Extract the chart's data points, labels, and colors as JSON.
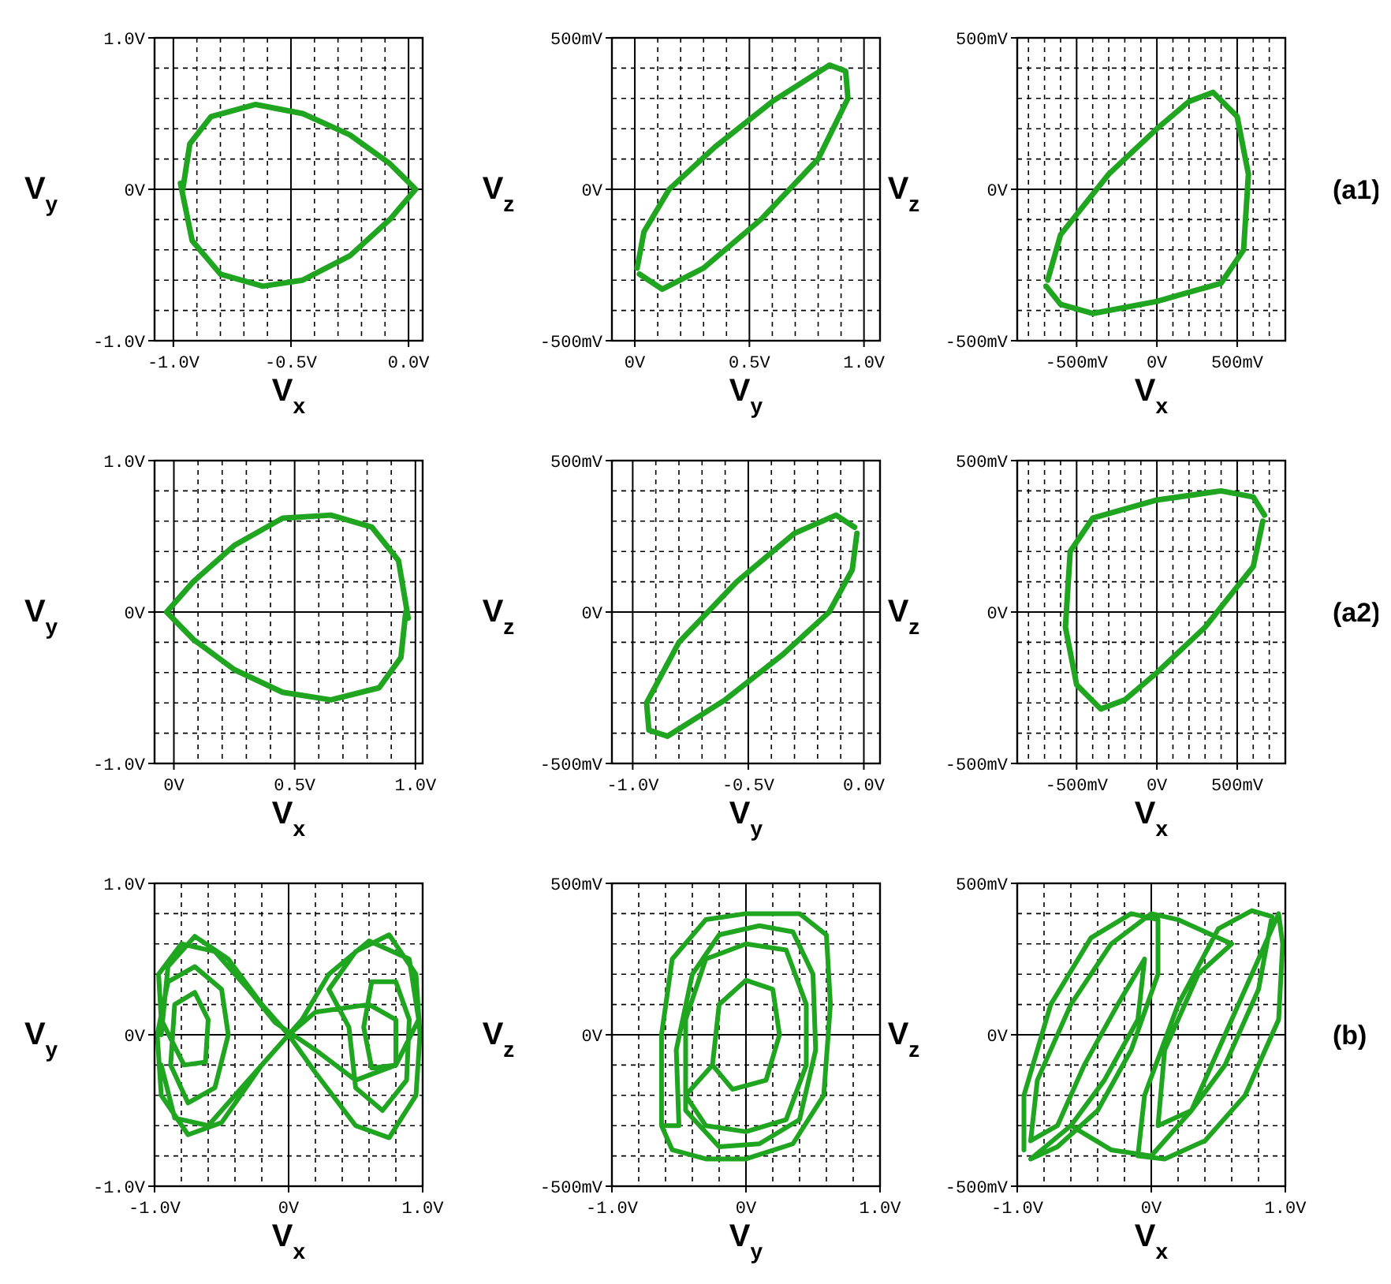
{
  "chart_data": [
    {
      "type": "line",
      "xlabel": "V$_{x}$",
      "ylabel": "V$_{y}$",
      "xlim": [
        -1.08,
        0.06
      ],
      "ylim": [
        -1,
        1
      ],
      "grid": true,
      "xticks": [
        {
          "value": -1,
          "label": "-1.0V"
        },
        {
          "value": -0.9,
          "label": null
        },
        {
          "value": -0.8,
          "label": null
        },
        {
          "value": -0.7,
          "label": null
        },
        {
          "value": -0.6,
          "label": null
        },
        {
          "value": -0.5,
          "label": "-0.5V"
        },
        {
          "value": -0.4,
          "label": null
        },
        {
          "value": -0.3,
          "label": null
        },
        {
          "value": -0.2,
          "label": null
        },
        {
          "value": -0.1,
          "label": null
        },
        {
          "value": 0,
          "label": "0.0V"
        }
      ],
      "yticks": [
        {
          "value": -1,
          "label": "-1.0V"
        },
        {
          "value": -0.8,
          "label": null
        },
        {
          "value": -0.6,
          "label": null
        },
        {
          "value": -0.4,
          "label": null
        },
        {
          "value": -0.2,
          "label": null
        },
        {
          "value": 0,
          "label": "0V"
        },
        {
          "value": 0.2,
          "label": null
        },
        {
          "value": 0.4,
          "label": null
        },
        {
          "value": 0.6,
          "label": null
        },
        {
          "value": 0.8,
          "label": null
        },
        {
          "value": 1,
          "label": "1.0V"
        }
      ],
      "series": [
        {
          "color": "#1fa51f",
          "x": [
            -0.96,
            -0.93,
            -0.84,
            -0.65,
            -0.45,
            -0.25,
            -0.08,
            0.03,
            -0.08,
            -0.25,
            -0.45,
            -0.62,
            -0.8,
            -0.92,
            -0.97
          ],
          "values": [
            0,
            0.3,
            0.48,
            0.56,
            0.5,
            0.36,
            0.17,
            0,
            -0.2,
            -0.44,
            -0.6,
            -0.64,
            -0.56,
            -0.34,
            0.04
          ]
        }
      ]
    },
    {
      "type": "line",
      "xlabel": "V$_{y}$",
      "ylabel": "V$_{z}$",
      "xlim": [
        -0.1,
        1.07
      ],
      "ylim": [
        -500,
        500
      ],
      "grid": true,
      "xticks": [
        {
          "value": 0,
          "label": "0V"
        },
        {
          "value": 0.1,
          "label": null
        },
        {
          "value": 0.2,
          "label": null
        },
        {
          "value": 0.3,
          "label": null
        },
        {
          "value": 0.4,
          "label": null
        },
        {
          "value": 0.5,
          "label": "0.5V"
        },
        {
          "value": 0.6,
          "label": null
        },
        {
          "value": 0.7,
          "label": null
        },
        {
          "value": 0.8,
          "label": null
        },
        {
          "value": 0.9,
          "label": null
        },
        {
          "value": 1,
          "label": "1.0V"
        }
      ],
      "yticks": [
        {
          "value": -500,
          "label": "-500mV"
        },
        {
          "value": -400,
          "label": null
        },
        {
          "value": -300,
          "label": null
        },
        {
          "value": -200,
          "label": null
        },
        {
          "value": -100,
          "label": null
        },
        {
          "value": 0,
          "label": "0V"
        },
        {
          "value": 100,
          "label": null
        },
        {
          "value": 200,
          "label": null
        },
        {
          "value": 300,
          "label": null
        },
        {
          "value": 400,
          "label": null
        },
        {
          "value": 500,
          "label": "500mV"
        }
      ],
      "series": [
        {
          "color": "#1fa51f",
          "x": [
            0.02,
            0.12,
            0.3,
            0.55,
            0.8,
            0.93,
            0.92,
            0.85,
            0.6,
            0.35,
            0.15,
            0.04,
            0.01
          ],
          "values": [
            -280,
            -330,
            -260,
            -100,
            100,
            300,
            390,
            410,
            290,
            140,
            0,
            -140,
            -260
          ]
        }
      ]
    },
    {
      "type": "line",
      "xlabel": "V$_{x}$",
      "ylabel": "V$_{z}$",
      "xlim": [
        -870,
        800
      ],
      "ylim": [
        -500,
        500
      ],
      "grid": true,
      "xticks": [
        {
          "value": -800,
          "label": null
        },
        {
          "value": -700,
          "label": null
        },
        {
          "value": -600,
          "label": null
        },
        {
          "value": -500,
          "label": "-500mV"
        },
        {
          "value": -400,
          "label": null
        },
        {
          "value": -300,
          "label": null
        },
        {
          "value": -200,
          "label": null
        },
        {
          "value": -100,
          "label": null
        },
        {
          "value": 0,
          "label": "0V"
        },
        {
          "value": 100,
          "label": null
        },
        {
          "value": 200,
          "label": null
        },
        {
          "value": 300,
          "label": null
        },
        {
          "value": 400,
          "label": null
        },
        {
          "value": 500,
          "label": "500mV"
        },
        {
          "value": 600,
          "label": null
        },
        {
          "value": 700,
          "label": null
        }
      ],
      "yticks": [
        {
          "value": -500,
          "label": "-500mV"
        },
        {
          "value": -400,
          "label": null
        },
        {
          "value": -300,
          "label": null
        },
        {
          "value": -200,
          "label": null
        },
        {
          "value": -100,
          "label": null
        },
        {
          "value": 0,
          "label": "0V"
        },
        {
          "value": 100,
          "label": null
        },
        {
          "value": 200,
          "label": null
        },
        {
          "value": 300,
          "label": null
        },
        {
          "value": 400,
          "label": null
        },
        {
          "value": 500,
          "label": "500mV"
        }
      ],
      "annotations": [
        "(a1)"
      ],
      "series": [
        {
          "color": "#1fa51f",
          "x": [
            -680,
            -600,
            -300,
            0,
            200,
            350,
            500,
            570,
            540,
            400,
            0,
            -400,
            -600,
            -690
          ],
          "values": [
            -300,
            -150,
            50,
            200,
            290,
            320,
            240,
            50,
            -200,
            -310,
            -370,
            -410,
            -380,
            -320
          ]
        }
      ]
    },
    {
      "type": "line",
      "xlabel": "V$_{x}$",
      "ylabel": "V$_{y}$",
      "xlim": [
        -0.08,
        1.03
      ],
      "ylim": [
        -1,
        1
      ],
      "grid": true,
      "xticks": [
        {
          "value": 0,
          "label": "0V"
        },
        {
          "value": 0.1,
          "label": null
        },
        {
          "value": 0.2,
          "label": null
        },
        {
          "value": 0.3,
          "label": null
        },
        {
          "value": 0.4,
          "label": null
        },
        {
          "value": 0.5,
          "label": "0.5V"
        },
        {
          "value": 0.6,
          "label": null
        },
        {
          "value": 0.7,
          "label": null
        },
        {
          "value": 0.8,
          "label": null
        },
        {
          "value": 0.9,
          "label": null
        },
        {
          "value": 1,
          "label": "1.0V"
        }
      ],
      "yticks": [
        {
          "value": -1,
          "label": "-1.0V"
        },
        {
          "value": -0.8,
          "label": null
        },
        {
          "value": -0.6,
          "label": null
        },
        {
          "value": -0.4,
          "label": null
        },
        {
          "value": -0.2,
          "label": null
        },
        {
          "value": 0,
          "label": "0V"
        },
        {
          "value": 0.2,
          "label": null
        },
        {
          "value": 0.4,
          "label": null
        },
        {
          "value": 0.6,
          "label": null
        },
        {
          "value": 0.8,
          "label": null
        },
        {
          "value": 1,
          "label": "1.0V"
        }
      ],
      "series": [
        {
          "color": "#1fa51f",
          "x": [
            0.96,
            0.94,
            0.85,
            0.65,
            0.45,
            0.25,
            0.08,
            -0.03,
            0.08,
            0.25,
            0.45,
            0.65,
            0.82,
            0.93,
            0.97
          ],
          "values": [
            0,
            -0.3,
            -0.5,
            -0.58,
            -0.53,
            -0.38,
            -0.18,
            0,
            0.2,
            0.44,
            0.62,
            0.64,
            0.56,
            0.34,
            -0.04
          ]
        }
      ]
    },
    {
      "type": "line",
      "xlabel": "V$_{y}$",
      "ylabel": "V$_{z}$",
      "xlim": [
        -1.09,
        0.07
      ],
      "ylim": [
        -500,
        500
      ],
      "grid": true,
      "xticks": [
        {
          "value": -1,
          "label": "-1.0V"
        },
        {
          "value": -0.9,
          "label": null
        },
        {
          "value": -0.8,
          "label": null
        },
        {
          "value": -0.7,
          "label": null
        },
        {
          "value": -0.6,
          "label": null
        },
        {
          "value": -0.5,
          "label": "-0.5V"
        },
        {
          "value": -0.4,
          "label": null
        },
        {
          "value": -0.3,
          "label": null
        },
        {
          "value": -0.2,
          "label": null
        },
        {
          "value": -0.1,
          "label": null
        },
        {
          "value": 0,
          "label": "0.0V"
        }
      ],
      "yticks": [
        {
          "value": -500,
          "label": "-500mV"
        },
        {
          "value": -400,
          "label": null
        },
        {
          "value": -300,
          "label": null
        },
        {
          "value": -200,
          "label": null
        },
        {
          "value": -100,
          "label": null
        },
        {
          "value": 0,
          "label": "0V"
        },
        {
          "value": 100,
          "label": null
        },
        {
          "value": 200,
          "label": null
        },
        {
          "value": 300,
          "label": null
        },
        {
          "value": 400,
          "label": null
        },
        {
          "value": 500,
          "label": "500mV"
        }
      ],
      "series": [
        {
          "color": "#1fa51f",
          "x": [
            -0.04,
            -0.12,
            -0.3,
            -0.55,
            -0.8,
            -0.94,
            -0.93,
            -0.85,
            -0.6,
            -0.35,
            -0.15,
            -0.05,
            -0.03
          ],
          "values": [
            280,
            320,
            260,
            100,
            -100,
            -300,
            -390,
            -410,
            -290,
            -140,
            0,
            140,
            260
          ]
        }
      ]
    },
    {
      "type": "line",
      "xlabel": "V$_{x}$",
      "ylabel": "V$_{z}$",
      "xlim": [
        -870,
        800
      ],
      "ylim": [
        -500,
        500
      ],
      "grid": true,
      "xticks": [
        {
          "value": -800,
          "label": null
        },
        {
          "value": -700,
          "label": null
        },
        {
          "value": -600,
          "label": null
        },
        {
          "value": -500,
          "label": "-500mV"
        },
        {
          "value": -400,
          "label": null
        },
        {
          "value": -300,
          "label": null
        },
        {
          "value": -200,
          "label": null
        },
        {
          "value": -100,
          "label": null
        },
        {
          "value": 0,
          "label": "0V"
        },
        {
          "value": 100,
          "label": null
        },
        {
          "value": 200,
          "label": null
        },
        {
          "value": 300,
          "label": null
        },
        {
          "value": 400,
          "label": null
        },
        {
          "value": 500,
          "label": "500mV"
        },
        {
          "value": 600,
          "label": null
        },
        {
          "value": 700,
          "label": null
        }
      ],
      "yticks": [
        {
          "value": -500,
          "label": "-500mV"
        },
        {
          "value": -400,
          "label": null
        },
        {
          "value": -300,
          "label": null
        },
        {
          "value": -200,
          "label": null
        },
        {
          "value": -100,
          "label": null
        },
        {
          "value": 0,
          "label": "0V"
        },
        {
          "value": 100,
          "label": null
        },
        {
          "value": 200,
          "label": null
        },
        {
          "value": 300,
          "label": null
        },
        {
          "value": 400,
          "label": null
        },
        {
          "value": 500,
          "label": "500mV"
        }
      ],
      "annotations": [
        "(a2)"
      ],
      "series": [
        {
          "color": "#1fa51f",
          "x": [
            660,
            600,
            300,
            0,
            -200,
            -350,
            -500,
            -570,
            -540,
            -400,
            0,
            400,
            600,
            670
          ],
          "values": [
            300,
            150,
            -50,
            -200,
            -290,
            -320,
            -240,
            -50,
            200,
            310,
            370,
            400,
            380,
            320
          ]
        }
      ]
    },
    {
      "type": "line",
      "xlabel": "V$_{x}$",
      "ylabel": "V$_{y}$",
      "xlim": [
        -1,
        1
      ],
      "ylim": [
        -1,
        1
      ],
      "grid": true,
      "xticks": [
        {
          "value": -1,
          "label": "-1.0V"
        },
        {
          "value": -0.8,
          "label": null
        },
        {
          "value": -0.6,
          "label": null
        },
        {
          "value": -0.4,
          "label": null
        },
        {
          "value": -0.2,
          "label": null
        },
        {
          "value": 0,
          "label": "0V"
        },
        {
          "value": 0.2,
          "label": null
        },
        {
          "value": 0.4,
          "label": null
        },
        {
          "value": 0.6,
          "label": null
        },
        {
          "value": 0.8,
          "label": null
        },
        {
          "value": 1,
          "label": "1.0V"
        }
      ],
      "yticks": [
        {
          "value": -1,
          "label": "-1.0V"
        },
        {
          "value": -0.8,
          "label": null
        },
        {
          "value": -0.6,
          "label": null
        },
        {
          "value": -0.4,
          "label": null
        },
        {
          "value": -0.2,
          "label": null
        },
        {
          "value": 0,
          "label": "0V"
        },
        {
          "value": 0.2,
          "label": null
        },
        {
          "value": 0.4,
          "label": null
        },
        {
          "value": 0.6,
          "label": null
        },
        {
          "value": 0.8,
          "label": null
        },
        {
          "value": 1,
          "label": "1.0V"
        }
      ],
      "series": [
        {
          "color": "#1fa51f",
          "x": [
            -0.95,
            -0.9,
            -0.7,
            -0.45,
            -0.2,
            0,
            0.2,
            0.5,
            0.75,
            0.95,
            0.98,
            0.95,
            0.75,
            0.5,
            0.3,
            0.45,
            0.5,
            0.7,
            0.88,
            0.9,
            0.8,
            0.62,
            0.56,
            0.62,
            0.8,
            0.8,
            0.6,
            0.2,
            0,
            -0.2,
            -0.5,
            -0.75,
            -0.95,
            -0.98,
            -0.9,
            -0.7,
            -0.5,
            -0.45,
            -0.55,
            -0.75,
            -0.88,
            -0.85,
            -0.7,
            -0.6,
            -0.62,
            -0.78,
            -0.95,
            -0.97,
            -0.8,
            -0.55,
            -0.3,
            -0.1,
            0.2,
            0.5,
            0.8,
            0.97,
            0.9,
            0.6,
            0.3,
            0.1,
            -0.3,
            -0.6,
            -0.85,
            -0.95
          ],
          "values": [
            0,
            0.45,
            0.65,
            0.5,
            0.2,
            0,
            -0.25,
            -0.6,
            -0.68,
            -0.4,
            0,
            0.4,
            0.66,
            0.55,
            0.3,
            0.05,
            -0.35,
            -0.5,
            -0.3,
            0.1,
            0.35,
            0.35,
            0.05,
            -0.22,
            -0.2,
            0.1,
            0.2,
            0.15,
            0,
            -0.2,
            -0.58,
            -0.66,
            -0.4,
            0,
            0.35,
            0.45,
            0.3,
            0,
            -0.35,
            -0.45,
            -0.2,
            0.2,
            0.28,
            0.1,
            -0.18,
            -0.2,
            0.1,
            0.4,
            0.6,
            0.55,
            0.3,
            0.08,
            -0.1,
            -0.3,
            -0.2,
            0.1,
            0.5,
            0.62,
            0.4,
            0.1,
            -0.3,
            -0.6,
            -0.55,
            -0.2
          ]
        }
      ]
    },
    {
      "type": "line",
      "xlabel": "V$_{y}$",
      "ylabel": "V$_{z}$",
      "xlim": [
        -1,
        1
      ],
      "ylim": [
        -500,
        500
      ],
      "grid": true,
      "xticks": [
        {
          "value": -1,
          "label": "-1.0V"
        },
        {
          "value": -0.8,
          "label": null
        },
        {
          "value": -0.6,
          "label": null
        },
        {
          "value": -0.4,
          "label": null
        },
        {
          "value": -0.2,
          "label": null
        },
        {
          "value": 0,
          "label": "0V"
        },
        {
          "value": 0.2,
          "label": null
        },
        {
          "value": 0.4,
          "label": null
        },
        {
          "value": 0.6,
          "label": null
        },
        {
          "value": 0.8,
          "label": null
        },
        {
          "value": 1,
          "label": "1.0V"
        }
      ],
      "yticks": [
        {
          "value": -500,
          "label": "-500mV"
        },
        {
          "value": -400,
          "label": null
        },
        {
          "value": -300,
          "label": null
        },
        {
          "value": -200,
          "label": null
        },
        {
          "value": -100,
          "label": null
        },
        {
          "value": 0,
          "label": "0V"
        },
        {
          "value": 100,
          "label": null
        },
        {
          "value": 200,
          "label": null
        },
        {
          "value": 300,
          "label": null
        },
        {
          "value": 400,
          "label": null
        },
        {
          "value": 500,
          "label": "500mV"
        }
      ],
      "series": [
        {
          "color": "#1fa51f",
          "x": [
            -0.63,
            -0.63,
            -0.55,
            -0.3,
            0,
            0.4,
            0.6,
            0.63,
            0.58,
            0.35,
            0,
            -0.3,
            -0.55,
            -0.63,
            -0.5,
            -0.52,
            -0.4,
            -0.2,
            0.1,
            0.35,
            0.5,
            0.52,
            0.4,
            0.1,
            -0.2,
            -0.45,
            -0.45,
            -0.3,
            0,
            0.3,
            0.45,
            0.45,
            0.3,
            0,
            -0.3,
            -0.45,
            -0.25,
            -0.2,
            0,
            0.2,
            0.25,
            0.15,
            -0.1,
            -0.25
          ],
          "values": [
            -300,
            0,
            250,
            380,
            400,
            400,
            330,
            100,
            -200,
            -360,
            -410,
            -410,
            -380,
            -300,
            -300,
            -50,
            200,
            330,
            360,
            340,
            200,
            -50,
            -280,
            -360,
            -370,
            -250,
            50,
            250,
            300,
            280,
            100,
            -100,
            -280,
            -320,
            -300,
            -200,
            -100,
            100,
            180,
            150,
            0,
            -150,
            -180,
            -100
          ]
        }
      ]
    },
    {
      "type": "line",
      "xlabel": "V$_{x}$",
      "ylabel": "V$_{z}$",
      "xlim": [
        -1,
        1
      ],
      "ylim": [
        -500,
        500
      ],
      "grid": true,
      "xticks": [
        {
          "value": -1,
          "label": "-1.0V"
        },
        {
          "value": -0.8,
          "label": null
        },
        {
          "value": -0.6,
          "label": null
        },
        {
          "value": -0.4,
          "label": null
        },
        {
          "value": -0.2,
          "label": null
        },
        {
          "value": 0,
          "label": "0V"
        },
        {
          "value": 0.2,
          "label": null
        },
        {
          "value": 0.4,
          "label": null
        },
        {
          "value": 0.6,
          "label": null
        },
        {
          "value": 0.8,
          "label": null
        },
        {
          "value": 1,
          "label": "1.0V"
        }
      ],
      "yticks": [
        {
          "value": -500,
          "label": "-500mV"
        },
        {
          "value": -400,
          "label": null
        },
        {
          "value": -300,
          "label": null
        },
        {
          "value": -200,
          "label": null
        },
        {
          "value": -100,
          "label": null
        },
        {
          "value": 0,
          "label": "0V"
        },
        {
          "value": 100,
          "label": null
        },
        {
          "value": 200,
          "label": null
        },
        {
          "value": 300,
          "label": null
        },
        {
          "value": 400,
          "label": null
        },
        {
          "value": 500,
          "label": "500mV"
        }
      ],
      "annotations": [
        "(b)"
      ],
      "series": [
        {
          "color": "#1fa51f",
          "x": [
            -0.95,
            -0.95,
            -0.75,
            -0.45,
            -0.15,
            0.05,
            0.05,
            -0.15,
            -0.4,
            -0.7,
            -0.9,
            -0.6,
            -0.3,
            0,
            0.3,
            0.6,
            0.85,
            0.95,
            0.98,
            0.95,
            0.7,
            0.4,
            0.1,
            -0.1,
            -0.05,
            0.2,
            0.5,
            0.75,
            0.9,
            0.8,
            0.55,
            0.3,
            0.05,
            0.1,
            0.35,
            0.6,
            0.2,
            0,
            -0.3,
            -0.6,
            -0.85,
            -0.9,
            -0.7,
            -0.5,
            -0.25,
            -0.05,
            -0.1,
            -0.35,
            -0.6
          ],
          "values": [
            -380,
            -200,
            100,
            320,
            400,
            380,
            200,
            -50,
            -250,
            -370,
            -410,
            -300,
            -380,
            -400,
            -250,
            50,
            300,
            400,
            300,
            50,
            -200,
            -350,
            -410,
            -400,
            -200,
            100,
            350,
            410,
            390,
            150,
            -100,
            -250,
            -300,
            -50,
            200,
            300,
            380,
            400,
            300,
            100,
            -150,
            -350,
            -300,
            -100,
            100,
            250,
            50,
            -150,
            -300
          ]
        }
      ]
    }
  ]
}
